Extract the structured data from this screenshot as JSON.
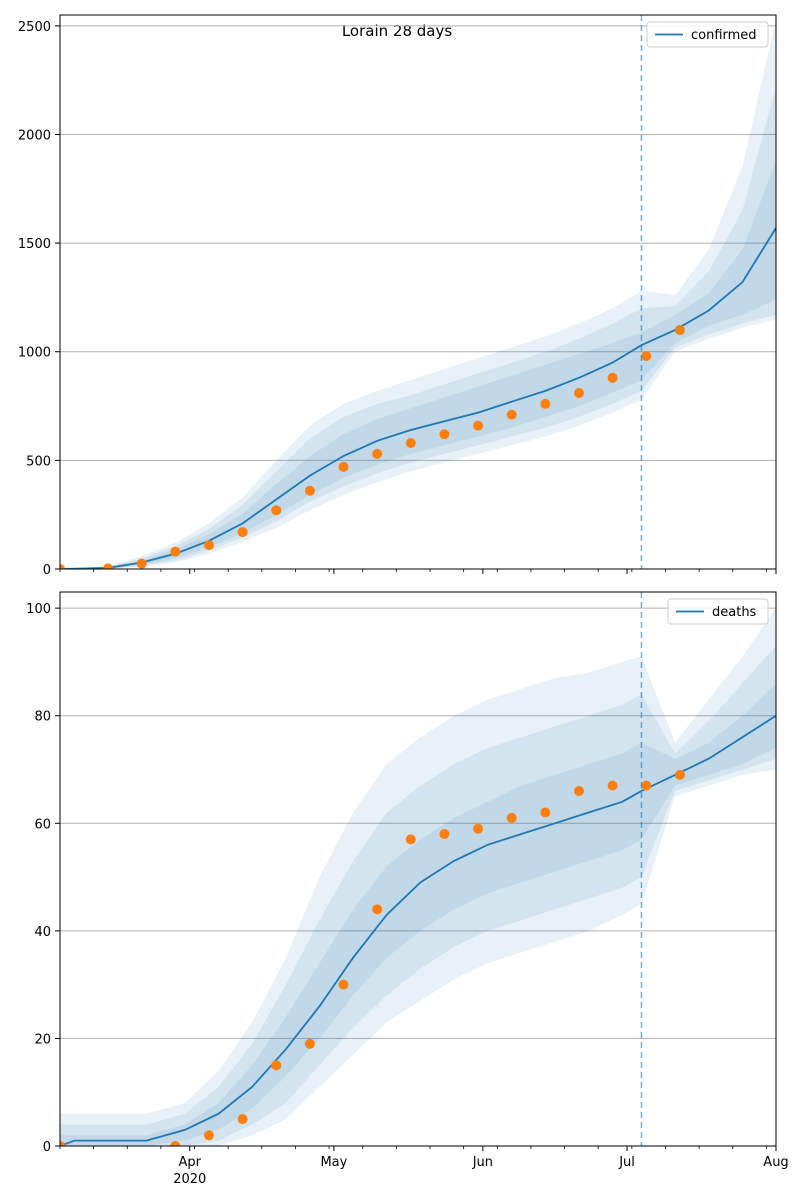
{
  "chart_data": {
    "title": "Lorain 28 days",
    "type": "line",
    "x_axis": {
      "ticks": [
        {
          "date": "2020-04-01",
          "label": "Apr"
        },
        {
          "date": "2020-05-01",
          "label": "May"
        },
        {
          "date": "2020-06-01",
          "label": "Jun"
        },
        {
          "date": "2020-07-01",
          "label": "Jul"
        },
        {
          "date": "2020-08-01",
          "label": "Aug"
        }
      ],
      "year_label": "2020",
      "range": [
        "2020-03-05",
        "2020-08-01"
      ]
    },
    "forecast_start": "2020-07-04",
    "colors": {
      "model": "#1f77b4",
      "observed": "#ff7f0e",
      "band": "#1f77b4",
      "grid": "#b0b0b0"
    },
    "panels": [
      {
        "name": "confirmed",
        "legend": "confirmed",
        "legend_position": "top-right",
        "grid": true,
        "ylim": [
          0,
          2550
        ],
        "yticks": [
          0,
          500,
          1000,
          1500,
          2000,
          2500
        ],
        "model": {
          "x": [
            "2020-03-05",
            "2020-03-15",
            "2020-03-22",
            "2020-03-29",
            "2020-04-05",
            "2020-04-12",
            "2020-04-19",
            "2020-04-26",
            "2020-05-03",
            "2020-05-10",
            "2020-05-17",
            "2020-05-24",
            "2020-05-31",
            "2020-06-07",
            "2020-06-14",
            "2020-06-21",
            "2020-06-28",
            "2020-07-04",
            "2020-07-11",
            "2020-07-18",
            "2020-07-25",
            "2020-08-01"
          ],
          "y": [
            0,
            5,
            30,
            70,
            130,
            210,
            320,
            430,
            520,
            590,
            640,
            680,
            720,
            770,
            820,
            880,
            950,
            1030,
            1100,
            1190,
            1320,
            1570
          ]
        },
        "bands": [
          {
            "lower": [
              0,
              0,
              20,
              50,
              100,
              165,
              250,
              340,
              420,
              480,
              530,
              570,
              610,
              650,
              700,
              750,
              810,
              870,
              1040,
              1120,
              1170,
              1240
            ],
            "upper": [
              0,
              8,
              40,
              90,
              160,
              255,
              390,
              520,
              620,
              690,
              740,
              790,
              840,
              890,
              940,
              990,
              1040,
              1090,
              1170,
              1270,
              1470,
              1880
            ]
          },
          {
            "lower": [
              0,
              0,
              15,
              40,
              85,
              145,
              220,
              310,
              380,
              440,
              490,
              530,
              570,
              610,
              650,
              700,
              760,
              820,
              1020,
              1080,
              1130,
              1170
            ],
            "upper": [
              0,
              10,
              50,
              105,
              185,
              295,
              450,
              600,
              700,
              760,
              800,
              850,
              900,
              950,
              1000,
              1060,
              1130,
              1200,
              1210,
              1370,
              1650,
              2220
            ]
          },
          {
            "lower": [
              0,
              0,
              10,
              30,
              70,
              125,
              190,
              270,
              340,
              400,
              450,
              490,
              530,
              570,
              610,
              660,
              720,
              780,
              1000,
              1060,
              1110,
              1150
            ],
            "upper": [
              0,
              12,
              60,
              120,
              210,
              330,
              500,
              660,
              760,
              820,
              870,
              920,
              970,
              1020,
              1070,
              1130,
              1200,
              1280,
              1260,
              1470,
              1850,
              2530
            ]
          }
        ],
        "observed": {
          "x": [
            "2020-03-05",
            "2020-03-15",
            "2020-03-22",
            "2020-03-29",
            "2020-04-05",
            "2020-04-12",
            "2020-04-19",
            "2020-04-26",
            "2020-05-03",
            "2020-05-10",
            "2020-05-17",
            "2020-05-24",
            "2020-05-31",
            "2020-06-07",
            "2020-06-14",
            "2020-06-21",
            "2020-06-28",
            "2020-07-05",
            "2020-07-12"
          ],
          "y": [
            0,
            3,
            25,
            80,
            110,
            170,
            270,
            360,
            470,
            530,
            580,
            620,
            660,
            710,
            760,
            810,
            880,
            980,
            1100
          ]
        }
      },
      {
        "name": "deaths",
        "legend": "deaths",
        "legend_position": "top-right",
        "grid": true,
        "ylim": [
          0,
          103
        ],
        "yticks": [
          0,
          20,
          40,
          60,
          80,
          100
        ],
        "model": {
          "x": [
            "2020-03-05",
            "2020-03-08",
            "2020-03-23",
            "2020-03-31",
            "2020-04-07",
            "2020-04-14",
            "2020-04-21",
            "2020-04-28",
            "2020-05-05",
            "2020-05-12",
            "2020-05-19",
            "2020-05-26",
            "2020-06-02",
            "2020-06-09",
            "2020-06-16",
            "2020-06-23",
            "2020-06-30",
            "2020-07-04",
            "2020-07-11",
            "2020-07-18",
            "2020-07-25",
            "2020-08-01"
          ],
          "y": [
            0,
            1,
            1,
            3,
            6,
            11,
            18,
            26,
            35,
            43,
            49,
            53,
            56,
            58,
            60,
            62,
            64,
            66,
            69,
            72,
            76,
            80
          ]
        },
        "bands": [
          {
            "lower": [
              0,
              0,
              0,
              1,
              3,
              7,
              13,
              20,
              28,
              35,
              40,
              44,
              47,
              49,
              51,
              53,
              55,
              57,
              67,
              69,
              71,
              74
            ],
            "upper": [
              2,
              2,
              2,
              4,
              8,
              15,
              24,
              34,
              44,
              52,
              57,
              61,
              64,
              67,
              69,
              71,
              73,
              75,
              72,
              75,
              80,
              86
            ]
          },
          {
            "lower": [
              0,
              0,
              0,
              0,
              1,
              4,
              8,
              15,
              22,
              28,
              33,
              37,
              40,
              42,
              44,
              46,
              48,
              50,
              66,
              68,
              70,
              72
            ],
            "upper": [
              4,
              4,
              4,
              6,
              11,
              19,
              30,
              42,
              53,
              62,
              67,
              71,
              74,
              76,
              78,
              80,
              82,
              84,
              73,
              79,
              86,
              93
            ]
          },
          {
            "lower": [
              0,
              0,
              0,
              0,
              0,
              2,
              5,
              11,
              17,
              23,
              27,
              31,
              34,
              36,
              38,
              40,
              43,
              45,
              65,
              67,
              69,
              70
            ],
            "upper": [
              6,
              6,
              6,
              8,
              14,
              23,
              35,
              50,
              62,
              71,
              76,
              80,
              83,
              85,
              87,
              88,
              90,
              91,
              75,
              83,
              91,
              100
            ]
          }
        ],
        "observed": {
          "x": [
            "2020-03-05",
            "2020-03-29",
            "2020-04-05",
            "2020-04-12",
            "2020-04-19",
            "2020-04-26",
            "2020-05-03",
            "2020-05-10",
            "2020-05-17",
            "2020-05-24",
            "2020-05-31",
            "2020-06-07",
            "2020-06-14",
            "2020-06-21",
            "2020-06-28",
            "2020-07-05",
            "2020-07-12"
          ],
          "y": [
            0,
            0,
            2,
            5,
            15,
            19,
            30,
            44,
            57,
            58,
            59,
            61,
            62,
            66,
            67,
            67,
            69
          ]
        }
      }
    ]
  }
}
